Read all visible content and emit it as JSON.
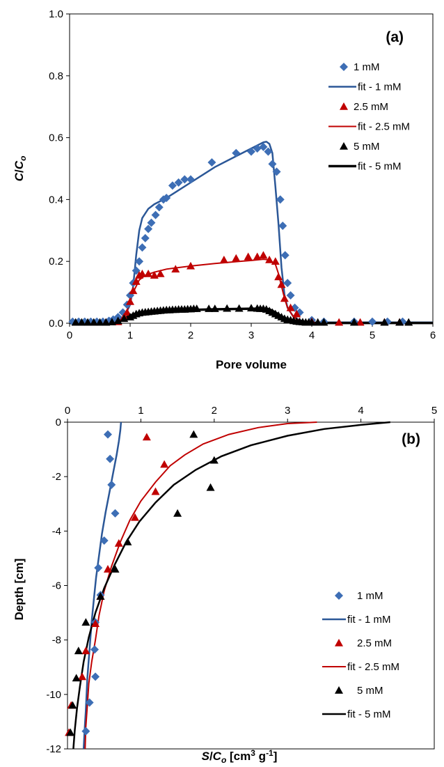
{
  "chart_data": [
    {
      "type": "scatter",
      "panel_label": "(a)",
      "xlabel": "Pore volume",
      "ylabel_main": "C",
      "ylabel_sep": "/",
      "ylabel_sub_base": "C",
      "ylabel_sub": "o",
      "xlim": [
        0,
        6
      ],
      "ylim": [
        0,
        1
      ],
      "xticks": [
        "0",
        "1",
        "2",
        "3",
        "4",
        "5",
        "6"
      ],
      "yticks": [
        "0.0",
        "0.2",
        "0.4",
        "0.6",
        "0.8",
        "1.0"
      ],
      "legend_position": "top-right",
      "series": [
        {
          "name": "1 mM",
          "kind": "points",
          "marker": "diamond",
          "color": "#3d6eb5",
          "x": [
            0.05,
            0.15,
            0.25,
            0.35,
            0.45,
            0.55,
            0.65,
            0.72,
            0.8,
            0.88,
            0.95,
            1.0,
            1.05,
            1.1,
            1.15,
            1.2,
            1.25,
            1.3,
            1.35,
            1.42,
            1.48,
            1.55,
            1.6,
            1.7,
            1.8,
            1.9,
            2.0,
            2.35,
            2.75,
            3.0,
            3.1,
            3.2,
            3.28,
            3.35,
            3.42,
            3.48,
            3.52,
            3.56,
            3.6,
            3.65,
            3.72,
            3.8,
            4.0,
            4.2,
            4.7,
            5.0,
            5.25,
            5.5
          ],
          "y": [
            0.005,
            0.005,
            0.005,
            0.005,
            0.005,
            0.005,
            0.008,
            0.012,
            0.02,
            0.035,
            0.06,
            0.09,
            0.13,
            0.17,
            0.2,
            0.245,
            0.275,
            0.305,
            0.325,
            0.35,
            0.375,
            0.4,
            0.405,
            0.445,
            0.455,
            0.465,
            0.465,
            0.52,
            0.55,
            0.555,
            0.565,
            0.57,
            0.555,
            0.515,
            0.49,
            0.4,
            0.315,
            0.22,
            0.13,
            0.09,
            0.05,
            0.035,
            0.01,
            0.005,
            0.005,
            0.005,
            0.005,
            0.005
          ]
        },
        {
          "name": "fit - 1 mM",
          "kind": "line",
          "color": "#2b5797",
          "width": 2.5,
          "x": [
            0,
            0.6,
            0.8,
            0.9,
            1.0,
            1.05,
            1.1,
            1.15,
            1.2,
            1.3,
            1.4,
            1.5,
            1.6,
            1.8,
            2.0,
            2.2,
            2.4,
            2.6,
            2.8,
            3.0,
            3.1,
            3.2,
            3.25,
            3.3,
            3.35,
            3.4,
            3.45,
            3.5,
            3.55,
            3.6,
            3.7,
            3.8,
            3.9,
            4.0,
            4.2,
            6.0
          ],
          "y": [
            0.003,
            0.003,
            0.008,
            0.02,
            0.06,
            0.12,
            0.22,
            0.3,
            0.34,
            0.37,
            0.385,
            0.395,
            0.405,
            0.43,
            0.455,
            0.48,
            0.505,
            0.525,
            0.545,
            0.565,
            0.575,
            0.585,
            0.587,
            0.58,
            0.55,
            0.44,
            0.32,
            0.18,
            0.09,
            0.05,
            0.02,
            0.01,
            0.005,
            0.003,
            0.003,
            0.003
          ]
        },
        {
          "name": "2.5 mM",
          "kind": "points",
          "marker": "triangle",
          "color": "#c00000",
          "x": [
            0.6,
            0.8,
            0.9,
            0.95,
            1.0,
            1.05,
            1.1,
            1.15,
            1.2,
            1.3,
            1.4,
            1.5,
            1.75,
            2.0,
            2.55,
            2.75,
            2.95,
            3.1,
            3.2,
            3.3,
            3.4,
            3.45,
            3.5,
            3.55,
            3.65,
            3.75,
            4.0,
            4.45,
            4.8,
            5.2,
            5.45
          ],
          "y": [
            0.003,
            0.005,
            0.02,
            0.035,
            0.07,
            0.105,
            0.135,
            0.155,
            0.16,
            0.16,
            0.155,
            0.16,
            0.175,
            0.185,
            0.205,
            0.21,
            0.215,
            0.215,
            0.22,
            0.205,
            0.2,
            0.15,
            0.125,
            0.08,
            0.05,
            0.03,
            0.005,
            0.003,
            0.003,
            0.003,
            0.003
          ]
        },
        {
          "name": "fit - 2.5 mM",
          "kind": "line",
          "color": "#c00000",
          "width": 2,
          "x": [
            0,
            0.7,
            0.85,
            0.95,
            1.05,
            1.15,
            1.25,
            1.4,
            1.6,
            2.0,
            2.4,
            2.8,
            3.0,
            3.2,
            3.3,
            3.4,
            3.45,
            3.5,
            3.55,
            3.6,
            3.7,
            3.8,
            4.0,
            6.0
          ],
          "y": [
            0.002,
            0.002,
            0.01,
            0.04,
            0.1,
            0.14,
            0.155,
            0.165,
            0.175,
            0.185,
            0.193,
            0.2,
            0.203,
            0.207,
            0.205,
            0.19,
            0.16,
            0.12,
            0.08,
            0.05,
            0.02,
            0.008,
            0.002,
            0.002
          ]
        },
        {
          "name": "5 mM",
          "kind": "points",
          "marker": "triangle",
          "color": "#000000",
          "x": [
            0.1,
            0.2,
            0.3,
            0.4,
            0.5,
            0.6,
            0.7,
            0.8,
            0.9,
            1.0,
            1.05,
            1.1,
            1.15,
            1.2,
            1.25,
            1.3,
            1.35,
            1.4,
            1.45,
            1.5,
            1.55,
            1.6,
            1.65,
            1.7,
            1.75,
            1.8,
            1.85,
            1.9,
            1.95,
            2.0,
            2.05,
            2.1,
            2.3,
            2.4,
            2.6,
            2.8,
            3.0,
            3.1,
            3.15,
            3.2,
            3.25,
            3.3,
            3.35,
            3.4,
            3.45,
            3.5,
            3.55,
            3.6,
            3.65,
            3.7,
            3.75,
            3.8,
            3.85,
            3.9,
            3.95,
            4.0,
            4.1,
            4.2,
            4.7,
            5.2,
            5.45,
            5.6
          ],
          "y": [
            0.003,
            0.003,
            0.003,
            0.003,
            0.003,
            0.003,
            0.004,
            0.008,
            0.015,
            0.02,
            0.025,
            0.03,
            0.033,
            0.035,
            0.036,
            0.037,
            0.038,
            0.039,
            0.04,
            0.041,
            0.042,
            0.043,
            0.043,
            0.044,
            0.044,
            0.045,
            0.045,
            0.045,
            0.046,
            0.046,
            0.047,
            0.047,
            0.047,
            0.047,
            0.048,
            0.048,
            0.049,
            0.048,
            0.047,
            0.047,
            0.045,
            0.04,
            0.035,
            0.03,
            0.025,
            0.02,
            0.015,
            0.012,
            0.01,
            0.008,
            0.006,
            0.005,
            0.004,
            0.003,
            0.003,
            0.003,
            0.003,
            0.003,
            0.003,
            0.003,
            0.003,
            0.003
          ]
        },
        {
          "name": "fit - 5 mM",
          "kind": "line",
          "color": "#000000",
          "width": 3.5,
          "x": [
            0,
            0.7,
            0.85,
            1.0,
            1.1,
            1.2,
            1.4,
            1.8,
            2.4,
            3.0,
            3.2,
            3.3,
            3.4,
            3.5,
            3.6,
            3.7,
            3.8,
            4.0,
            6.0
          ],
          "y": [
            0.001,
            0.001,
            0.01,
            0.025,
            0.032,
            0.036,
            0.039,
            0.042,
            0.045,
            0.047,
            0.047,
            0.045,
            0.035,
            0.022,
            0.012,
            0.006,
            0.003,
            0.001,
            0.001
          ]
        }
      ]
    },
    {
      "type": "scatter",
      "panel_label": "(b)",
      "xlabel_main": "S",
      "xlabel_sep": "/",
      "xlabel_sub_base": "C",
      "xlabel_sub": "o",
      "xlabel_units": " [cm",
      "xlabel_sup1": "3",
      "xlabel_units2": " g",
      "xlabel_sup2": "-1",
      "xlabel_close": "]",
      "ylabel": "Depth [cm]",
      "xlim": [
        0,
        5
      ],
      "ylim": [
        -12,
        0
      ],
      "xticks": [
        "0",
        "1",
        "2",
        "3",
        "4",
        "5"
      ],
      "yticks": [
        "0",
        "-2",
        "-4",
        "-6",
        "-8",
        "-10",
        "-12"
      ],
      "legend_position": "bottom-right",
      "series": [
        {
          "name": "1 mM",
          "kind": "points",
          "marker": "diamond",
          "color": "#3d6eb5",
          "x": [
            0.55,
            0.58,
            0.6,
            0.65,
            0.5,
            0.42,
            0.45,
            0.38,
            0.37,
            0.38,
            0.3,
            0.25
          ],
          "y": [
            -0.45,
            -1.35,
            -2.3,
            -3.35,
            -4.35,
            -5.35,
            -6.35,
            -7.35,
            -8.35,
            -9.35,
            -10.3,
            -11.35
          ]
        },
        {
          "name": "fit - 1 mM",
          "kind": "line",
          "color": "#2b5797",
          "width": 2.5,
          "x": [
            0.73,
            0.72,
            0.7,
            0.67,
            0.62,
            0.57,
            0.52,
            0.47,
            0.43,
            0.39,
            0.36,
            0.33,
            0.31,
            0.29,
            0.27,
            0.26,
            0.25,
            0.24,
            0.23,
            0.22
          ],
          "y": [
            0,
            -0.3,
            -0.7,
            -1.2,
            -1.9,
            -2.6,
            -3.3,
            -4.1,
            -4.9,
            -5.7,
            -6.5,
            -7.3,
            -8.0,
            -8.7,
            -9.4,
            -10.0,
            -10.6,
            -11.0,
            -11.5,
            -12.0
          ]
        },
        {
          "name": "2.5 mM",
          "kind": "points",
          "marker": "triangle",
          "color": "#c00000",
          "x": [
            1.08,
            1.32,
            1.2,
            0.92,
            0.7,
            0.55,
            0.45,
            0.38,
            0.25,
            0.2,
            0.05,
            0.02
          ],
          "y": [
            -0.55,
            -1.55,
            -2.55,
            -3.5,
            -4.45,
            -5.4,
            -6.4,
            -7.4,
            -8.4,
            -9.35,
            -10.4,
            -11.4
          ]
        },
        {
          "name": "fit - 2.5 mM",
          "kind": "line",
          "color": "#c00000",
          "width": 2,
          "x": [
            3.4,
            3.0,
            2.6,
            2.2,
            1.85,
            1.6,
            1.4,
            1.2,
            1.0,
            0.85,
            0.72,
            0.6,
            0.5,
            0.43,
            0.38,
            0.33,
            0.29,
            0.27,
            0.25,
            0.24
          ],
          "y": [
            0,
            -0.05,
            -0.2,
            -0.45,
            -0.8,
            -1.2,
            -1.6,
            -2.2,
            -2.9,
            -3.6,
            -4.4,
            -5.3,
            -6.2,
            -7.1,
            -8.0,
            -8.8,
            -9.6,
            -10.4,
            -11.2,
            -12.0
          ]
        },
        {
          "name": "5 mM",
          "kind": "points",
          "marker": "triangle",
          "color": "#000000",
          "x": [
            1.72,
            2.0,
            1.95,
            1.5,
            0.82,
            0.65,
            0.45,
            0.25,
            0.15,
            0.12,
            0.07,
            0.04
          ],
          "y": [
            -0.45,
            -1.4,
            -2.4,
            -3.35,
            -4.4,
            -5.4,
            -6.4,
            -7.35,
            -8.4,
            -9.4,
            -10.4,
            -11.4
          ]
        },
        {
          "name": "fit - 5 mM",
          "kind": "line",
          "color": "#000000",
          "width": 2.5,
          "x": [
            4.4,
            4.0,
            3.5,
            3.0,
            2.5,
            2.1,
            1.75,
            1.45,
            1.2,
            0.98,
            0.8,
            0.64,
            0.5,
            0.38,
            0.29,
            0.22,
            0.17,
            0.13,
            0.1,
            0.08
          ],
          "y": [
            0,
            -0.1,
            -0.25,
            -0.5,
            -0.85,
            -1.25,
            -1.75,
            -2.3,
            -2.95,
            -3.65,
            -4.4,
            -5.25,
            -6.1,
            -7.0,
            -7.9,
            -8.8,
            -9.7,
            -10.5,
            -11.3,
            -12.0
          ]
        }
      ]
    }
  ]
}
